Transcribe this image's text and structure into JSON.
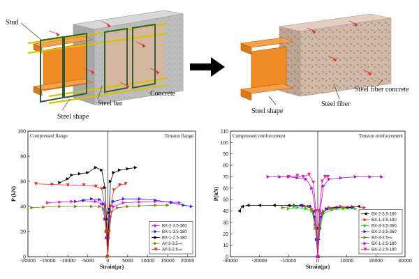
{
  "diagram": {
    "labels": {
      "stud": "Stud",
      "steel_bar": "Steel bar",
      "concrete": "Concrete",
      "steel_shape_left": "Steel shape",
      "steel_shape_right": "Steel shape",
      "steel_fiber": "Steel fiber",
      "steel_fiber_concrete": "Steel fiber concrete"
    },
    "colors": {
      "steel_shape": "#f08a24",
      "steel_bar": "#d8c200",
      "stud": "#2f5f3a",
      "concrete": "#b9b9b9",
      "fiber_concrete": "#d2b8a6",
      "arrow": "#000000"
    }
  },
  "chart_data": [
    {
      "type": "scatter",
      "xlabel": "Strain(με)",
      "ylabel": "P (kN)",
      "xlim": [
        -20000,
        22000
      ],
      "ylim": [
        0,
        100
      ],
      "xticks": [
        -20000,
        -15000,
        -10000,
        -5000,
        0,
        5000,
        10000,
        15000,
        20000
      ],
      "yticks": [
        0,
        20,
        40,
        60,
        80,
        100
      ],
      "annotations": [
        "Compressed flange",
        "Tension flange"
      ],
      "legend_position": "bottom-right",
      "series": [
        {
          "name": "BX-2-3.5-360",
          "color": "#ff00ff",
          "marker": "triangle-right",
          "left": [
            [
              -15000,
              43
            ],
            [
              -12000,
              43.5
            ],
            [
              -9000,
              44
            ],
            [
              -6000,
              44.5
            ],
            [
              -3000,
              44
            ],
            [
              -1500,
              42
            ],
            [
              -700,
              30
            ],
            [
              -300,
              15
            ],
            [
              0,
              0
            ]
          ],
          "right": [
            [
              0,
              0
            ],
            [
              300,
              15
            ],
            [
              700,
              32
            ],
            [
              1500,
              40
            ],
            [
              4000,
              43
            ],
            [
              8000,
              43.5
            ],
            [
              12000,
              44
            ],
            [
              16000,
              43.5
            ],
            [
              18000,
              43
            ]
          ]
        },
        {
          "name": "BX-1-3.5-180",
          "color": "#2222ff",
          "marker": "triangle-right",
          "left": [
            [
              -8000,
              44
            ],
            [
              -6000,
              45
            ],
            [
              -4000,
              46
            ],
            [
              -2000,
              45.5
            ],
            [
              -1000,
              42
            ],
            [
              -500,
              30
            ],
            [
              -200,
              15
            ],
            [
              0,
              0
            ]
          ],
          "right": [
            [
              0,
              0
            ],
            [
              200,
              20
            ],
            [
              500,
              38
            ],
            [
              1500,
              44
            ],
            [
              4000,
              46
            ],
            [
              8000,
              46
            ],
            [
              12000,
              45
            ],
            [
              16000,
              43
            ],
            [
              19000,
              41
            ],
            [
              21000,
              40
            ]
          ]
        },
        {
          "name": "BX-1-2.5-180",
          "color": "#000000",
          "marker": "triangle-right",
          "left": [
            [
              -12000,
              59
            ],
            [
              -10000,
              62
            ],
            [
              -9000,
              65
            ],
            [
              -7000,
              66
            ],
            [
              -5000,
              67
            ],
            [
              -3000,
              71
            ],
            [
              -1500,
              69
            ],
            [
              -700,
              55
            ],
            [
              -300,
              30
            ],
            [
              0,
              0
            ]
          ],
          "right": [
            [
              0,
              0
            ],
            [
              300,
              35
            ],
            [
              700,
              60
            ],
            [
              1500,
              67
            ],
            [
              3000,
              69
            ],
            [
              5000,
              70
            ],
            [
              7000,
              71
            ]
          ]
        },
        {
          "name": "AY-3-3.5-∞",
          "color": "#808000",
          "marker": "triangle-right",
          "left": [
            [
              -19000,
              39
            ],
            [
              -16000,
              39.5
            ],
            [
              -12000,
              40
            ],
            [
              -8000,
              40
            ],
            [
              -4000,
              40
            ],
            [
              -2000,
              40
            ],
            [
              -1000,
              38
            ],
            [
              -400,
              20
            ],
            [
              0,
              0
            ]
          ],
          "right": [
            [
              0,
              0
            ],
            [
              400,
              20
            ],
            [
              1000,
              36
            ],
            [
              2500,
              39
            ],
            [
              5000,
              40
            ],
            [
              8000,
              40.5
            ],
            [
              12000,
              41
            ],
            [
              15000,
              41
            ]
          ]
        },
        {
          "name": "AY-3-2.5-∞",
          "color": "#ff2020",
          "marker": "triangle-down",
          "left": [
            [
              -18000,
              58
            ],
            [
              -14000,
              57.5
            ],
            [
              -10000,
              57
            ],
            [
              -6000,
              57
            ],
            [
              -3000,
              56
            ],
            [
              -1500,
              54
            ],
            [
              -700,
              40
            ],
            [
              -300,
              20
            ],
            [
              0,
              0
            ]
          ],
          "right": [
            [
              0,
              0
            ],
            [
              300,
              20
            ],
            [
              700,
              40
            ],
            [
              1500,
              53
            ],
            [
              3000,
              57
            ],
            [
              4500,
              58
            ]
          ]
        }
      ]
    },
    {
      "type": "scatter",
      "xlabel": "Strain(με)",
      "ylabel": "P(kN)",
      "xlim": [
        -30000,
        30000
      ],
      "ylim": [
        0,
        110
      ],
      "xticks": [
        -30000,
        -20000,
        -10000,
        0,
        10000,
        20000,
        30000
      ],
      "yticks": [
        0,
        10,
        20,
        30,
        40,
        50,
        60,
        70,
        80,
        90,
        100,
        110
      ],
      "annotations": [
        "Compressed reinforcement",
        "Tension reinforcement"
      ],
      "legend_position": "bottom-right",
      "series": [
        {
          "name": "BX-2-3.5-180",
          "color": "#000000",
          "marker": "triangle-left",
          "left": [
            [
              -27000,
              40
            ],
            [
              -26000,
              44
            ],
            [
              -24000,
              45
            ],
            [
              -20000,
              45
            ],
            [
              -15000,
              45
            ],
            [
              -10000,
              45
            ],
            [
              -6000,
              45
            ],
            [
              -3000,
              44
            ],
            [
              -1500,
              40
            ],
            [
              -600,
              25
            ],
            [
              0,
              0
            ]
          ],
          "right": [
            [
              0,
              0
            ],
            [
              600,
              25
            ],
            [
              1500,
              38
            ],
            [
              3000,
              42
            ],
            [
              6000,
              43
            ],
            [
              10000,
              43
            ],
            [
              14000,
              44
            ]
          ]
        },
        {
          "name": "BX-1-3.5-180",
          "color": "#ff2020",
          "marker": "triangle-right",
          "left": [
            [
              -5000,
              44
            ],
            [
              -3000,
              44
            ],
            [
              -1500,
              40
            ],
            [
              -600,
              25
            ],
            [
              0,
              0
            ]
          ],
          "right": [
            [
              0,
              0
            ],
            [
              600,
              25
            ],
            [
              1500,
              38
            ],
            [
              4000,
              43
            ],
            [
              8000,
              44
            ],
            [
              12000,
              44
            ],
            [
              16000,
              43
            ]
          ]
        },
        {
          "name": "BX-3-3.5-360",
          "color": "#22cc22",
          "marker": "triangle-right",
          "left": [
            [
              -10000,
              42
            ],
            [
              -7000,
              43
            ],
            [
              -4000,
              42
            ],
            [
              -2000,
              40
            ],
            [
              -800,
              25
            ],
            [
              0,
              0
            ]
          ],
          "right": [
            [
              0,
              0
            ],
            [
              800,
              25
            ],
            [
              2000,
              38
            ],
            [
              5000,
              41
            ],
            [
              9000,
              42
            ],
            [
              13000,
              42
            ]
          ]
        },
        {
          "name": "BX-2-3.5-360",
          "color": "#2222ff",
          "marker": "triangle-right",
          "left": [
            [
              -8000,
              45
            ],
            [
              -5000,
              45
            ],
            [
              -2500,
              44
            ],
            [
              -1000,
              35
            ],
            [
              -400,
              15
            ],
            [
              0,
              0
            ]
          ],
          "right": [
            [
              0,
              0
            ],
            [
              400,
              15
            ],
            [
              1000,
              35
            ],
            [
              3000,
              42
            ],
            [
              7000,
              43
            ],
            [
              12000,
              43
            ]
          ]
        },
        {
          "name": "BX-3-3.5-∞",
          "color": "#808000",
          "marker": "triangle-right",
          "left": [
            [
              -12000,
              43
            ],
            [
              -8000,
              44
            ],
            [
              -4000,
              44
            ],
            [
              -2000,
              42
            ],
            [
              -800,
              28
            ],
            [
              0,
              0
            ]
          ],
          "right": [
            [
              0,
              0
            ],
            [
              800,
              28
            ],
            [
              2000,
              40
            ],
            [
              5000,
              42
            ],
            [
              9000,
              43
            ]
          ]
        },
        {
          "name": "BX-1-2.5-180",
          "color": "#b000ff",
          "marker": "triangle-right",
          "left": [
            [
              -17000,
              70
            ],
            [
              -13000,
              70
            ],
            [
              -10000,
              70
            ],
            [
              -7000,
              69
            ],
            [
              -4000,
              68
            ],
            [
              -2000,
              60
            ],
            [
              -800,
              40
            ],
            [
              0,
              0
            ]
          ],
          "right": [
            [
              0,
              0
            ],
            [
              800,
              40
            ],
            [
              2000,
              62
            ],
            [
              4000,
              68
            ],
            [
              8000,
              69
            ],
            [
              13000,
              70
            ],
            [
              18000,
              70
            ],
            [
              22000,
              70
            ]
          ]
        },
        {
          "name": "BX-2-2.5-180",
          "color": "#ff1493",
          "marker": "triangle-down",
          "left": [
            [
              -10000,
              70
            ],
            [
              -7000,
              71
            ],
            [
              -5000,
              70
            ],
            [
              -3000,
              72
            ],
            [
              -1500,
              65
            ],
            [
              -600,
              40
            ],
            [
              0,
              0
            ]
          ],
          "right": [
            [
              0,
              0
            ],
            [
              600,
              40
            ],
            [
              1500,
              66
            ],
            [
              2500,
              70
            ],
            [
              3500,
              70
            ]
          ]
        }
      ]
    }
  ]
}
